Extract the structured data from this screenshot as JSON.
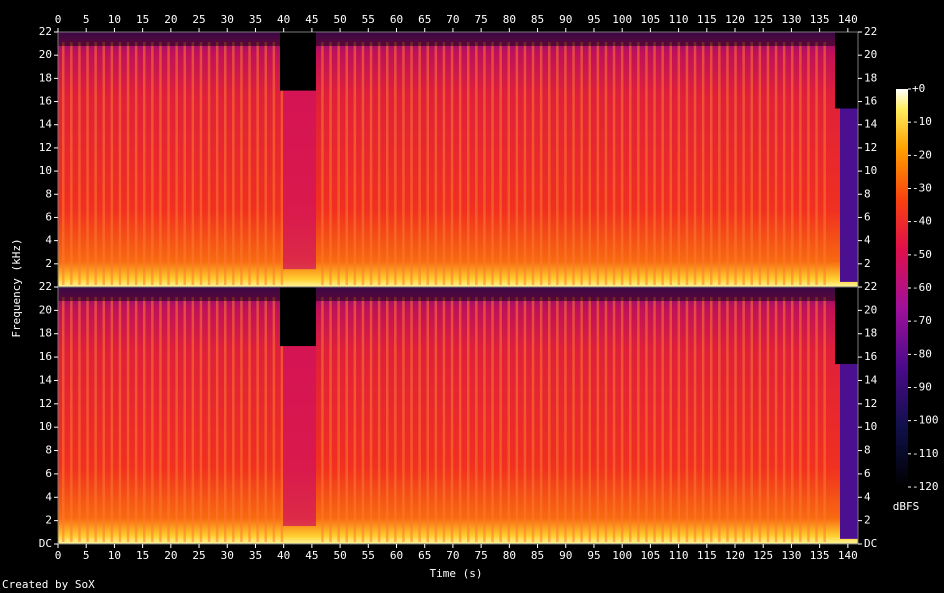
{
  "chart_data": {
    "type": "spectrogram",
    "x_label": "Time (s)",
    "y_label": "Frequency (kHz)",
    "xlim": [
      0,
      141.8
    ],
    "xticks": [
      0,
      5,
      10,
      15,
      20,
      25,
      30,
      35,
      40,
      45,
      50,
      55,
      60,
      65,
      70,
      75,
      80,
      85,
      90,
      95,
      100,
      105,
      110,
      115,
      120,
      125,
      130,
      135,
      140
    ],
    "ylim": [
      0,
      22
    ],
    "yticks": [
      {
        "value": 0,
        "label": "DC"
      },
      2,
      4,
      6,
      8,
      10,
      12,
      14,
      16,
      18,
      20,
      22
    ],
    "colorbar_label": "dBFS",
    "colorbar_lim": [
      -120,
      0
    ],
    "colorbar_ticks": [
      {
        "value": 0,
        "label": "+0"
      },
      -10,
      -20,
      -30,
      -40,
      -50,
      -60,
      -70,
      -80,
      -90,
      -100,
      -110,
      -120
    ],
    "footer": "Created by SoX"
  }
}
